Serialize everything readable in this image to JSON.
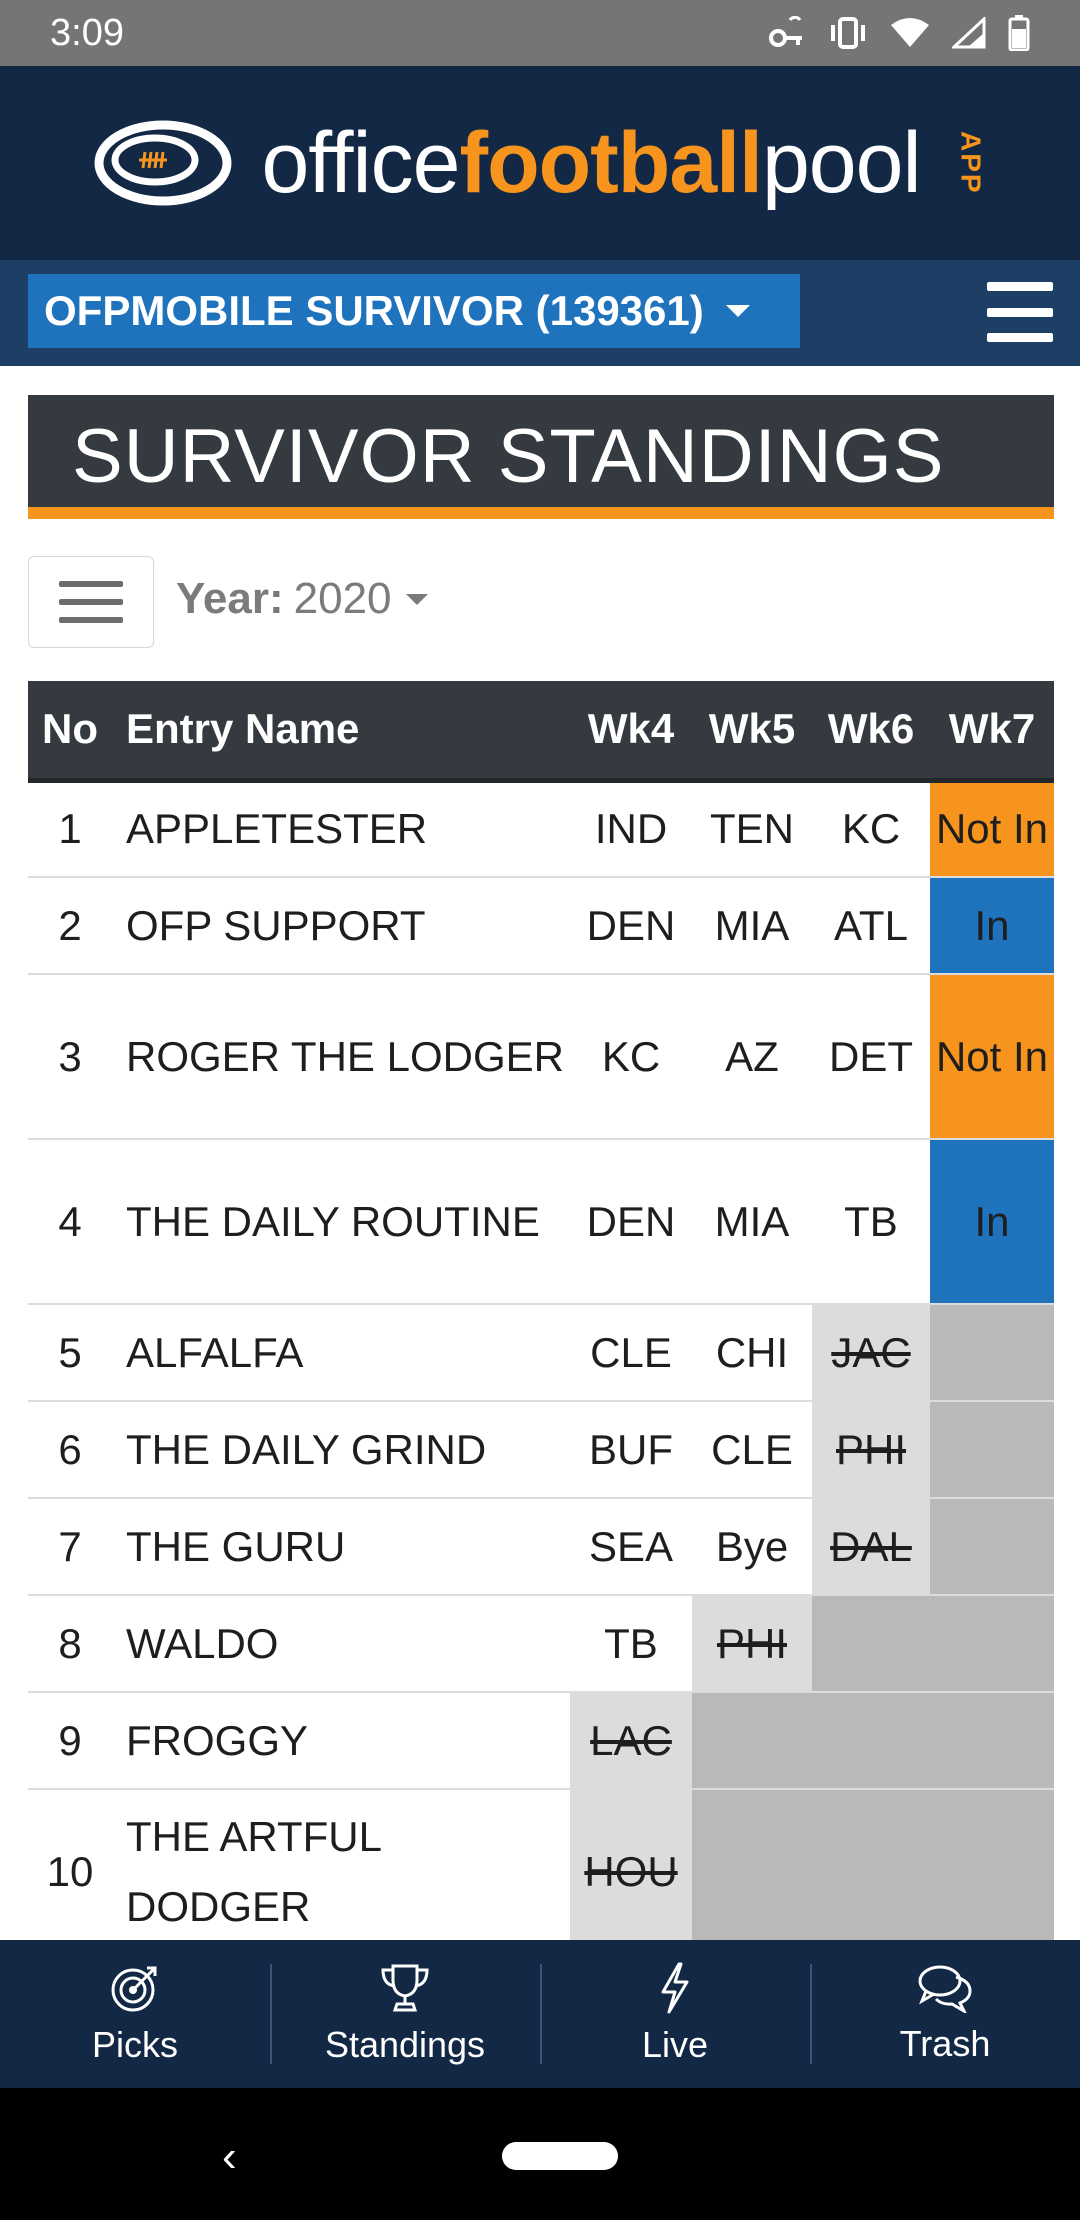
{
  "status_bar": {
    "time": "3:09"
  },
  "header": {
    "logo_part1": "office",
    "logo_part2": "football",
    "logo_part3": "pool",
    "logo_badge": "APP"
  },
  "league": {
    "name": "OFPMOBILE SURVIVOR (139361)"
  },
  "page": {
    "title": "SURVIVOR STANDINGS"
  },
  "filters": {
    "year_label": "Year:",
    "year_value": "2020"
  },
  "table": {
    "columns": [
      "No",
      "Entry Name",
      "Wk4",
      "Wk5",
      "Wk6",
      "Wk7"
    ],
    "rows": [
      {
        "no": "1",
        "name": "APPLETESTER",
        "wk4": "IND",
        "wk5": "TEN",
        "wk6": "KC",
        "wk7": "Not In"
      },
      {
        "no": "2",
        "name": "OFP SUPPORT",
        "wk4": "DEN",
        "wk5": "MIA",
        "wk6": "ATL",
        "wk7": "In"
      },
      {
        "no": "3",
        "name": "ROGER THE LODGER",
        "wk4": "KC",
        "wk5": "AZ",
        "wk6": "DET",
        "wk7": "Not In"
      },
      {
        "no": "4",
        "name": "THE DAILY ROUTINE",
        "wk4": "DEN",
        "wk5": "MIA",
        "wk6": "TB",
        "wk7": "In"
      },
      {
        "no": "5",
        "name": "ALFALFA",
        "wk4": "CLE",
        "wk5": "CHI",
        "wk6": "JAC",
        "wk7": ""
      },
      {
        "no": "6",
        "name": "THE DAILY GRIND",
        "wk4": "BUF",
        "wk5": "CLE",
        "wk6": "PHI",
        "wk7": ""
      },
      {
        "no": "7",
        "name": "THE GURU",
        "wk4": "SEA",
        "wk5": "Bye",
        "wk6": "DAL",
        "wk7": ""
      },
      {
        "no": "8",
        "name": "WALDO",
        "wk4": "TB",
        "wk5": "PHI",
        "wk6": "",
        "wk7": ""
      },
      {
        "no": "9",
        "name": "FROGGY",
        "wk4": "LAC",
        "wk5": "",
        "wk6": "",
        "wk7": ""
      },
      {
        "no": "10",
        "name": "THE ARTFUL DODGER",
        "wk4": "HOU",
        "wk5": "",
        "wk6": "",
        "wk7": ""
      }
    ]
  },
  "bottom_nav": [
    {
      "label": "Picks",
      "icon": "target-icon"
    },
    {
      "label": "Standings",
      "icon": "trophy-icon"
    },
    {
      "label": "Live",
      "icon": "lightning-icon"
    },
    {
      "label": "Trash",
      "icon": "chat-bubbles-icon"
    }
  ],
  "colors": {
    "navy": "#122844",
    "orange": "#f7941d",
    "blue": "#1f73bd",
    "dark": "#343a40"
  }
}
